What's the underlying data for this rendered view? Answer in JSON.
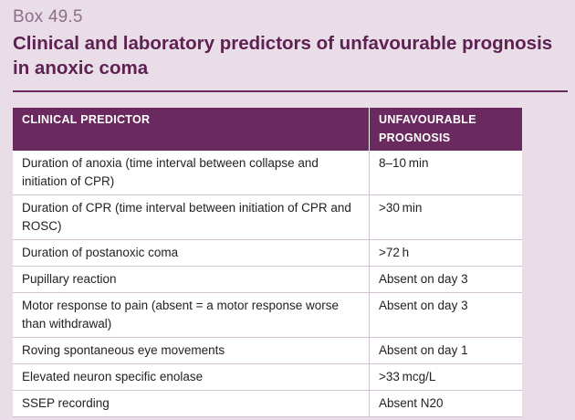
{
  "box": {
    "label": "Box 49.5",
    "title": "Clinical and laboratory predictors of unfavourable prognosis in anoxic coma"
  },
  "table": {
    "headers": [
      "CLINICAL PREDICTOR",
      "UNFAVOURABLE PROGNOSIS"
    ],
    "rows": [
      [
        "Duration of anoxia (time interval between collapse and initiation of CPR)",
        "8–10 min"
      ],
      [
        "Duration of CPR (time interval between initiation of CPR and ROSC)",
        ">30 min"
      ],
      [
        "Duration of postanoxic coma",
        ">72 h"
      ],
      [
        "Pupillary reaction",
        "Absent on day 3"
      ],
      [
        "Motor response to pain (absent = a motor response worse than withdrawal)",
        "Absent on day 3"
      ],
      [
        "Roving spontaneous eye movements",
        "Absent on day 1"
      ],
      [
        "Elevated neuron specific enolase",
        ">33 mcg/L"
      ],
      [
        "SSEP recording",
        "Absent N20"
      ]
    ]
  }
}
